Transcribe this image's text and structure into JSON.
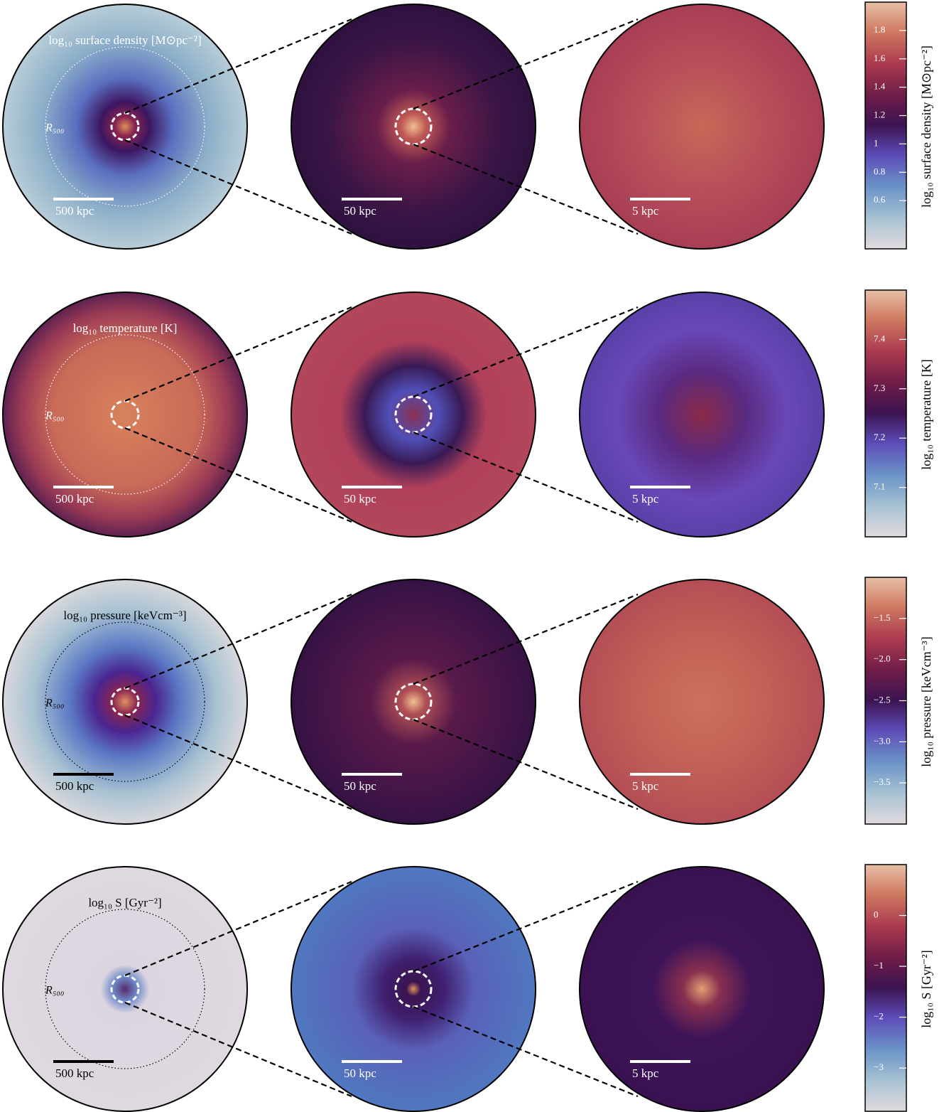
{
  "rows": [
    {
      "title": "log₁₀ surface density [M⊙pc⁻²]",
      "r500_label": "R₅₀₀",
      "scale_bars": [
        "500 kpc",
        "50 kpc",
        "5 kpc"
      ],
      "colorbar": {
        "label": "log₁₀ surface density [M⊙pc⁻²]",
        "lim": [
          0.26,
          2.0
        ],
        "ticks": [
          0.6,
          0.8,
          1.0,
          1.2,
          1.4,
          1.6,
          1.8
        ]
      }
    },
    {
      "title": "log₁₀ temperature [K]",
      "r500_label": "R₅₀₀",
      "scale_bars": [
        "500 kpc",
        "50 kpc",
        "5 kpc"
      ],
      "colorbar": {
        "label": "log₁₀ temperature [K]",
        "lim": [
          7.0,
          7.5
        ],
        "ticks": [
          7.1,
          7.2,
          7.3,
          7.4
        ]
      }
    },
    {
      "title": "log₁₀ pressure [keVcm⁻³]",
      "r500_label": "R₅₀₀",
      "scale_bars": [
        "500 kpc",
        "50 kpc",
        "5 kpc"
      ],
      "colorbar": {
        "label": "log₁₀ pressure [keVcm⁻³]",
        "lim": [
          -4.0,
          -1.0
        ],
        "ticks": [
          {
            "value": -3.5,
            "label": "−3.5"
          },
          {
            "value": -3.0,
            "label": "−3.0"
          },
          {
            "value": -2.5,
            "label": "−2.5"
          },
          {
            "value": -2.0,
            "label": "−2.0"
          },
          {
            "value": -1.5,
            "label": "−1.5"
          }
        ]
      }
    },
    {
      "title": "log₁₀ S [Gyr⁻²]",
      "r500_label": "R₅₀₀",
      "scale_bars": [
        "500 kpc",
        "50 kpc",
        "5 kpc"
      ],
      "colorbar": {
        "label": "log₁₀ S [Gyr⁻²]",
        "lim": [
          -3.85,
          1.0
        ],
        "ticks": [
          {
            "value": -3,
            "label": "−3"
          },
          {
            "value": -2,
            "label": "−2"
          },
          {
            "value": -1,
            "label": "−1"
          },
          0
        ]
      }
    }
  ]
}
